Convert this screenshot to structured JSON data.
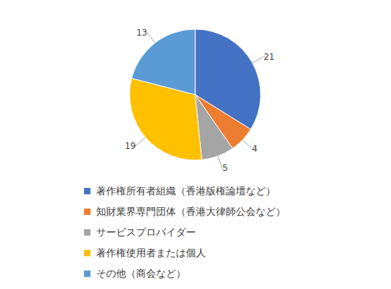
{
  "chart_data": {
    "type": "pie",
    "categories": [
      "著作権所有者組織（香港版権論壇など）",
      "知財業界専門団体（香港大律師公会など）",
      "サービスプロバイダー",
      "著作権使用者または個人",
      "その他（商会など）"
    ],
    "values": [
      21,
      4,
      5,
      19,
      13
    ],
    "colors": [
      "#4472c4",
      "#ed7d31",
      "#a5a5a5",
      "#ffc000",
      "#5b9bd5"
    ],
    "data_labels": true,
    "legend": "bottom"
  }
}
